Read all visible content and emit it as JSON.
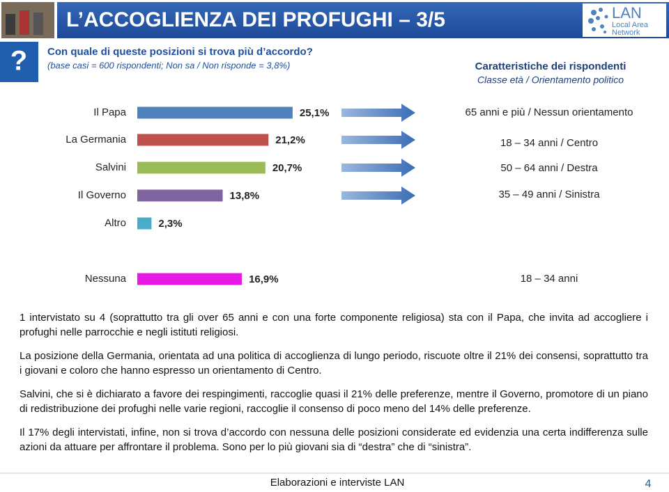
{
  "header": {
    "title": "L’ACCOGLIENZA DEI PROFUGHI – 3/5",
    "badge": "?"
  },
  "logo": {
    "name": "LAN",
    "line1": "Local Area",
    "line2": "Network"
  },
  "question": {
    "text": "Con quale di queste posizioni si trova più d’accordo?",
    "base": "(base casi = 600 rispondenti; Non sa / Non risponde = 3,8%)"
  },
  "respondents": {
    "title": "Caratteristiche dei rispondenti",
    "subtitle": "Classe età / Orientamento politico"
  },
  "chart_data": {
    "type": "bar",
    "orientation": "horizontal",
    "categories": [
      "Il Papa",
      "La Germania",
      "Salvini",
      "Il Governo",
      "Altro",
      "Nessuna"
    ],
    "values": [
      25.1,
      21.2,
      20.7,
      13.8,
      2.3,
      16.9
    ],
    "value_labels": [
      "25,1%",
      "21,2%",
      "20,7%",
      "13,8%",
      "2,3%",
      "16,9%"
    ],
    "colors": [
      "#4f81bd",
      "#c0504d",
      "#9bbb59",
      "#8064a2",
      "#4bacc6",
      "#e619e6"
    ],
    "characteristics": [
      "65 anni e più / Nessun orientamento",
      "18 – 34 anni / Centro",
      "50 – 64 anni / Destra",
      "35 – 49 anni / Sinistra",
      null,
      "18 – 34 anni"
    ]
  },
  "paragraphs": [
    "1 intervistato su 4 (soprattutto tra gli over 65 anni e con una forte componente religiosa) sta con il Papa, che invita ad accogliere i profughi nelle parrocchie e negli istituti religiosi.",
    "La posizione della Germania, orientata ad una politica di accoglienza di lungo periodo, riscuote oltre il 21% dei consensi, soprattutto tra i giovani e coloro che hanno espresso un orientamento di Centro.",
    "Salvini, che si è dichiarato a favore dei respingimenti, raccoglie quasi il 21% delle preferenze, mentre il Governo, promotore di un piano di redistribuzione dei profughi nelle varie regioni, raccoglie il consenso di poco meno del 14% delle preferenze.",
    "Il 17% degli intervistati, infine, non si trova d’accordo con nessuna delle posizioni considerate ed evidenzia una certa indifferenza sulle azioni da attuare per affrontare il problema. Sono per lo più giovani sia di “destra” che di “sinistra”."
  ],
  "footer": {
    "source": "Elaborazioni e interviste LAN",
    "page": "4"
  }
}
